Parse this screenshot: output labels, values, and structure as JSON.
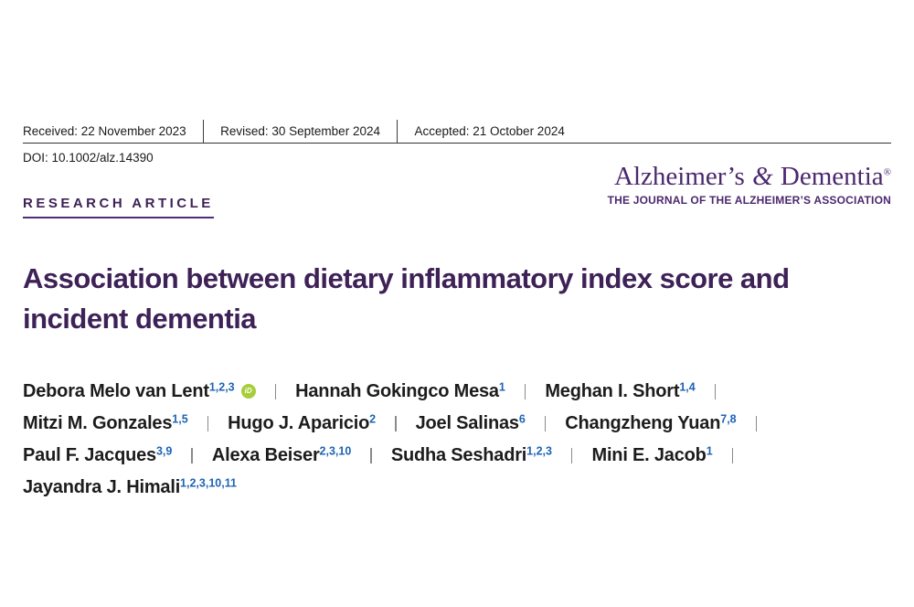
{
  "meta": {
    "received": "Received: 22 November 2023",
    "revised": "Revised: 30 September 2024",
    "accepted": "Accepted: 21 October 2024",
    "doi": "DOI: 10.1002/alz.14390"
  },
  "journal": {
    "name_part1": "Alzheimer’s",
    "ampersand": "&",
    "name_part2": "Dementia",
    "registered": "®",
    "subtitle": "THE JOURNAL OF THE ALZHEIMER’S ASSOCIATION"
  },
  "article": {
    "type_label": "RESEARCH ARTICLE",
    "title": "Association between dietary inflammatory index score and incident dementia",
    "title_lines": [
      "Association between dietary inflammatory index score and",
      "incident dementia"
    ]
  },
  "authors": {
    "orcid_label": "iD",
    "lines": [
      [
        {
          "name": "Debora Melo van Lent",
          "sup": "1,2,3",
          "orcid": true,
          "sep": true
        },
        {
          "name": "Hannah Gokingco Mesa",
          "sup": "1",
          "sep": true
        },
        {
          "name": "Meghan I. Short",
          "sup": "1,4",
          "sep": true
        }
      ],
      [
        {
          "name": "Mitzi M. Gonzales",
          "sup": "1,5",
          "sep": true
        },
        {
          "name": "Hugo J. Aparicio",
          "sup": "2",
          "sep": true
        },
        {
          "name": "Joel Salinas",
          "sup": "6",
          "sep": true
        },
        {
          "name": "Changzheng Yuan",
          "sup": "7,8",
          "sep": true
        }
      ],
      [
        {
          "name": "Paul F. Jacques",
          "sup": "3,9",
          "sep": true
        },
        {
          "name": "Alexa Beiser",
          "sup": "2,3,10",
          "sep": true
        },
        {
          "name": "Sudha Seshadri",
          "sup": "1,2,3",
          "sep": true
        },
        {
          "name": "Mini E. Jacob",
          "sup": "1",
          "sep": true
        }
      ],
      [
        {
          "name": "Jayandra J. Himali",
          "sup": "1,2,3,10,11",
          "sep": false
        }
      ]
    ]
  },
  "colors": {
    "heading_purple": "#3e2257",
    "brand_purple": "#4b286e",
    "underline_purple": "#4e2d7a",
    "sup_blue": "#1c63b5",
    "orcid_green": "#a6ce39",
    "text_dark": "#1c1c1c",
    "separator_gray": "#8a8a8a",
    "rule_dark": "#333333"
  }
}
